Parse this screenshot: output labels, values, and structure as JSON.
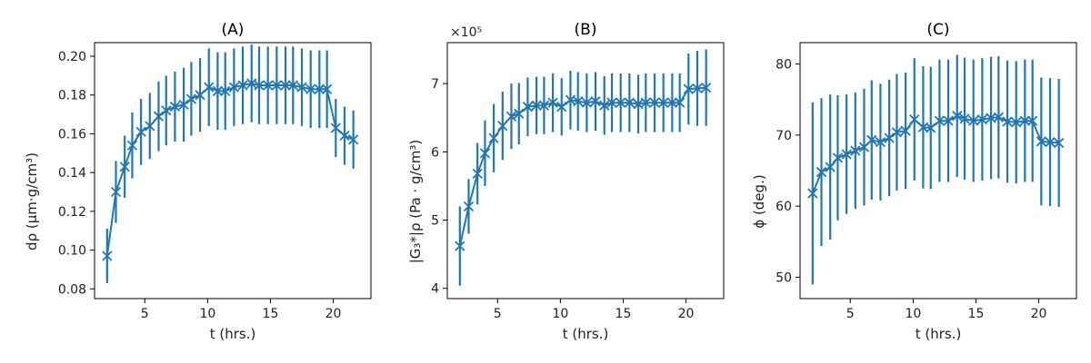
{
  "chart_data": [
    {
      "type": "line",
      "title": "(A)",
      "xlabel": "t (hrs.)",
      "ylabel": "dρ (μm·g/cm³)",
      "xlim": [
        1.0,
        23.0
      ],
      "ylim": [
        0.075,
        0.207
      ],
      "xticks": [
        5,
        10,
        15,
        20
      ],
      "yticks": [
        0.08,
        0.1,
        0.12,
        0.14,
        0.16,
        0.18,
        0.2
      ],
      "ytick_labels": [
        "0.08",
        "0.10",
        "0.12",
        "0.14",
        "0.16",
        "0.18",
        "0.20"
      ],
      "offset_text": "",
      "x": [
        2.0,
        2.7,
        3.4,
        4.0,
        4.7,
        5.4,
        6.1,
        6.7,
        7.4,
        8.1,
        8.7,
        9.4,
        10.1,
        10.8,
        11.4,
        12.1,
        12.8,
        13.5,
        14.1,
        14.8,
        15.5,
        16.2,
        16.8,
        17.5,
        18.2,
        18.9,
        19.5,
        20.2,
        20.9,
        21.6
      ],
      "values": [
        0.097,
        0.13,
        0.143,
        0.154,
        0.161,
        0.164,
        0.169,
        0.172,
        0.174,
        0.175,
        0.178,
        0.18,
        0.184,
        0.182,
        0.182,
        0.184,
        0.185,
        0.186,
        0.185,
        0.185,
        0.185,
        0.185,
        0.185,
        0.184,
        0.183,
        0.183,
        0.183,
        0.163,
        0.159,
        0.157
      ],
      "errors": [
        0.014,
        0.016,
        0.016,
        0.017,
        0.017,
        0.017,
        0.018,
        0.018,
        0.018,
        0.019,
        0.019,
        0.019,
        0.02,
        0.02,
        0.02,
        0.02,
        0.02,
        0.02,
        0.02,
        0.02,
        0.02,
        0.02,
        0.02,
        0.02,
        0.02,
        0.02,
        0.02,
        0.015,
        0.015,
        0.015
      ]
    },
    {
      "type": "line",
      "title": "(B)",
      "xlabel": "t (hrs.)",
      "ylabel": "|G₃*|ρ (Pa · g/cm³)",
      "xlim": [
        1.0,
        23.0
      ],
      "ylim": [
        3.85,
        7.6
      ],
      "xticks": [
        5,
        10,
        15,
        20
      ],
      "yticks": [
        4,
        5,
        6,
        7
      ],
      "ytick_labels": [
        "4",
        "5",
        "6",
        "7"
      ],
      "offset_text": "×10⁵",
      "x": [
        2.0,
        2.7,
        3.4,
        4.0,
        4.7,
        5.4,
        6.1,
        6.7,
        7.4,
        8.1,
        8.7,
        9.4,
        10.1,
        10.8,
        11.4,
        12.1,
        12.8,
        13.5,
        14.1,
        14.8,
        15.5,
        16.2,
        16.8,
        17.5,
        18.2,
        18.9,
        19.5,
        20.2,
        20.9,
        21.6
      ],
      "values": [
        4.62,
        5.2,
        5.68,
        5.98,
        6.2,
        6.38,
        6.52,
        6.56,
        6.66,
        6.68,
        6.68,
        6.72,
        6.66,
        6.76,
        6.74,
        6.72,
        6.74,
        6.68,
        6.72,
        6.72,
        6.72,
        6.7,
        6.72,
        6.72,
        6.72,
        6.72,
        6.72,
        6.92,
        6.93,
        6.94
      ],
      "errors": [
        0.58,
        0.4,
        0.45,
        0.48,
        0.5,
        0.5,
        0.48,
        0.45,
        0.43,
        0.42,
        0.42,
        0.43,
        0.42,
        0.43,
        0.43,
        0.43,
        0.43,
        0.43,
        0.43,
        0.43,
        0.43,
        0.43,
        0.43,
        0.43,
        0.43,
        0.43,
        0.43,
        0.52,
        0.55,
        0.56
      ]
    },
    {
      "type": "line",
      "title": "(C)",
      "xlabel": "t (hrs.)",
      "ylabel": "ϕ (deg.)",
      "xlim": [
        1.0,
        23.0
      ],
      "ylim": [
        47.0,
        83.0
      ],
      "xticks": [
        5,
        10,
        15,
        20
      ],
      "yticks": [
        50,
        60,
        70,
        80
      ],
      "ytick_labels": [
        "50",
        "60",
        "70",
        "80"
      ],
      "offset_text": "",
      "x": [
        2.0,
        2.7,
        3.4,
        4.0,
        4.7,
        5.4,
        6.1,
        6.7,
        7.4,
        8.1,
        8.7,
        9.4,
        10.1,
        10.8,
        11.4,
        12.1,
        12.8,
        13.5,
        14.1,
        14.8,
        15.5,
        16.2,
        16.8,
        17.5,
        18.2,
        18.9,
        19.5,
        20.2,
        20.9,
        21.6
      ],
      "values": [
        61.8,
        64.8,
        65.5,
        66.8,
        67.3,
        67.8,
        68.3,
        69.3,
        69.0,
        69.6,
        70.4,
        70.6,
        72.2,
        71.1,
        71.0,
        72.0,
        72.0,
        72.7,
        72.3,
        72.0,
        72.2,
        72.4,
        72.5,
        71.9,
        71.8,
        72.0,
        72.0,
        69.1,
        69.0,
        68.9
      ],
      "errors": [
        12.8,
        10.4,
        10.2,
        8.8,
        8.4,
        8.2,
        8.2,
        8.4,
        8.2,
        8.2,
        8.2,
        8.2,
        8.6,
        8.6,
        8.6,
        8.6,
        8.6,
        8.6,
        8.6,
        8.6,
        8.6,
        8.6,
        8.6,
        8.6,
        8.6,
        8.6,
        8.6,
        9.0,
        9.0,
        9.0
      ]
    }
  ]
}
